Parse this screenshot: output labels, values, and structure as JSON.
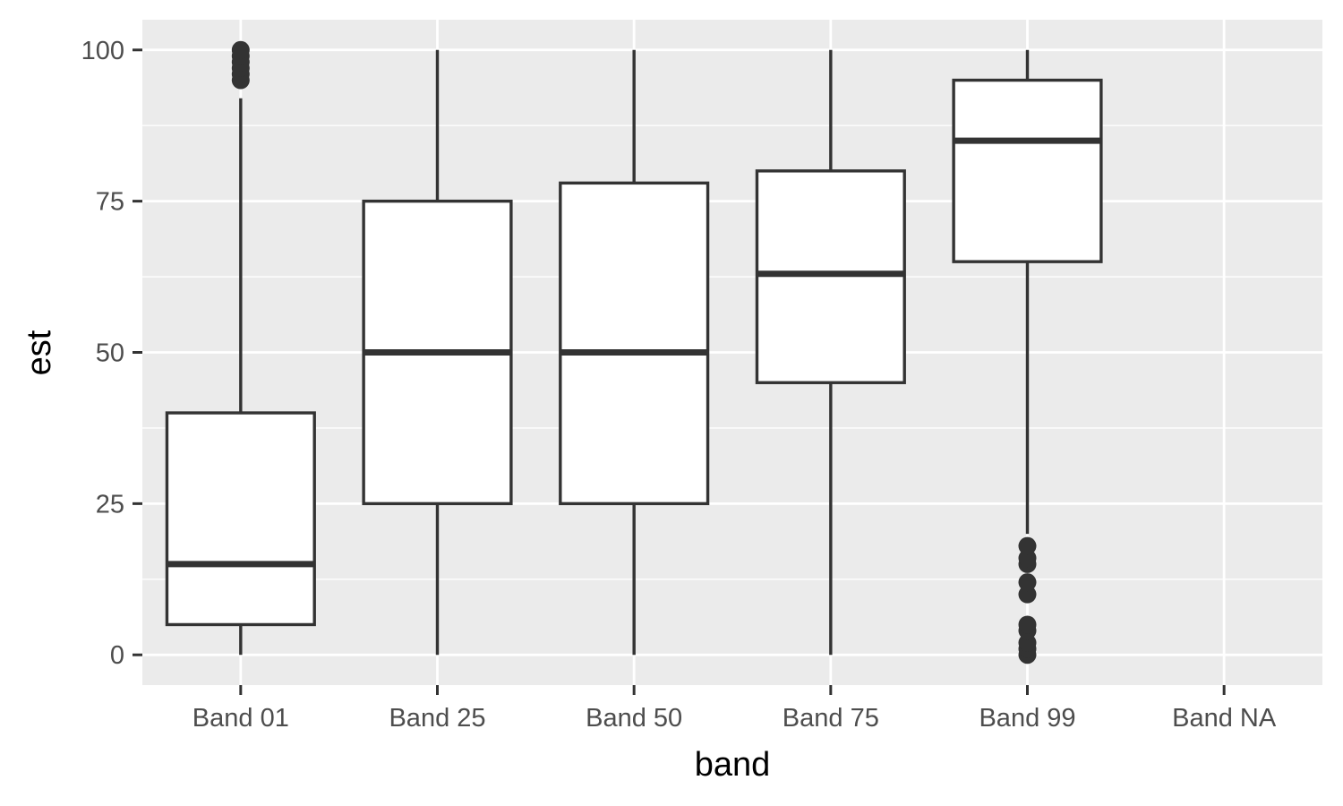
{
  "chart_data": {
    "type": "boxplot",
    "title": "",
    "xlabel": "band",
    "ylabel": "est",
    "ylim": [
      -5,
      105
    ],
    "yticks": [
      0,
      25,
      50,
      75,
      100
    ],
    "ytick_labels": [
      "0",
      "25",
      "50",
      "75",
      "100"
    ],
    "categories": [
      "Band 01",
      "Band 25",
      "Band 50",
      "Band 75",
      "Band 99",
      "Band NA"
    ],
    "boxes": [
      {
        "category": "Band 01",
        "whisker_low": 0,
        "q1": 5,
        "median": 15,
        "q3": 40,
        "whisker_high": 92,
        "outliers": [
          95,
          96,
          97,
          98,
          99,
          100
        ]
      },
      {
        "category": "Band 25",
        "whisker_low": 0,
        "q1": 25,
        "median": 50,
        "q3": 75,
        "whisker_high": 100,
        "outliers": []
      },
      {
        "category": "Band 50",
        "whisker_low": 0,
        "q1": 25,
        "median": 50,
        "q3": 78,
        "whisker_high": 100,
        "outliers": []
      },
      {
        "category": "Band 75",
        "whisker_low": 0,
        "q1": 45,
        "median": 63,
        "q3": 80,
        "whisker_high": 100,
        "outliers": []
      },
      {
        "category": "Band 99",
        "whisker_low": 20,
        "q1": 65,
        "median": 85,
        "q3": 95,
        "whisker_high": 100,
        "outliers": [
          0,
          1,
          2,
          4,
          5,
          10,
          12,
          15,
          16,
          18
        ]
      },
      {
        "category": "Band NA",
        "empty": true,
        "outliers": []
      }
    ],
    "grid": true,
    "colors": {
      "panel": "#ebebeb",
      "grid": "#ffffff",
      "box_fill": "#ffffff",
      "line": "#333333",
      "tick_text": "#4d4d4d",
      "title_text": "#000000"
    }
  }
}
